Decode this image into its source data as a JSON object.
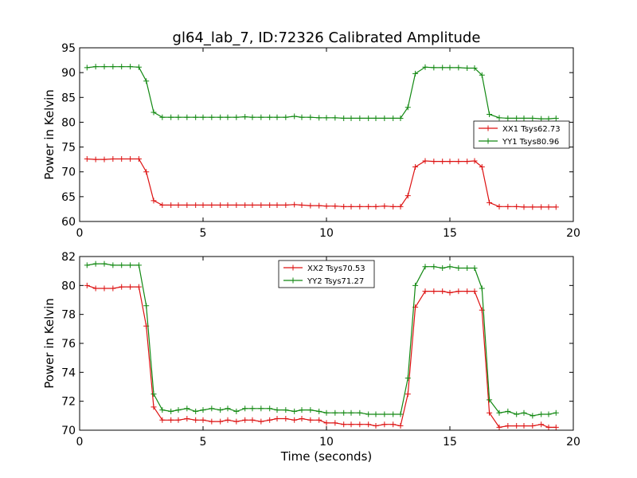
{
  "title": "gl64_lab_7, ID:72326 Calibrated Amplitude",
  "xlabel": "Time (seconds)",
  "chart_data": [
    {
      "type": "line",
      "ylabel": "Power in Kelvin",
      "xlim": [
        0,
        20
      ],
      "ylim": [
        60,
        95
      ],
      "xticks": [
        0,
        5,
        10,
        15,
        20
      ],
      "yticks": [
        60,
        65,
        70,
        75,
        80,
        85,
        90,
        95
      ],
      "legend_position": "center-right",
      "x": [
        0.3,
        0.65,
        1.0,
        1.35,
        1.7,
        2.05,
        2.4,
        2.7,
        3.0,
        3.35,
        3.7,
        4.0,
        4.35,
        4.7,
        5.0,
        5.35,
        5.7,
        6.0,
        6.35,
        6.7,
        7.0,
        7.35,
        7.7,
        8.0,
        8.35,
        8.7,
        9.0,
        9.35,
        9.7,
        10.0,
        10.35,
        10.7,
        11.0,
        11.35,
        11.7,
        12.0,
        12.35,
        12.7,
        13.0,
        13.3,
        13.6,
        14.0,
        14.35,
        14.7,
        15.0,
        15.35,
        15.7,
        16.0,
        16.3,
        16.6,
        17.0,
        17.35,
        17.7,
        18.0,
        18.35,
        18.7,
        19.0,
        19.3
      ],
      "series": [
        {
          "name": "XX1 Tsys62.73",
          "color": "#dd1111",
          "values": [
            72.6,
            72.5,
            72.5,
            72.6,
            72.6,
            72.6,
            72.6,
            70.0,
            64.2,
            63.3,
            63.3,
            63.3,
            63.3,
            63.3,
            63.3,
            63.3,
            63.3,
            63.3,
            63.3,
            63.3,
            63.3,
            63.3,
            63.3,
            63.3,
            63.3,
            63.4,
            63.3,
            63.2,
            63.2,
            63.1,
            63.1,
            63.0,
            63.0,
            63.0,
            63.0,
            63.0,
            63.1,
            63.0,
            63.0,
            65.2,
            71.0,
            72.2,
            72.1,
            72.1,
            72.1,
            72.1,
            72.1,
            72.2,
            71.0,
            63.8,
            63.0,
            63.0,
            63.0,
            62.9,
            62.9,
            62.9,
            62.9,
            62.9
          ]
        },
        {
          "name": "YY1 Tsys80.96",
          "color": "#118811",
          "values": [
            91.0,
            91.2,
            91.2,
            91.2,
            91.2,
            91.2,
            91.1,
            88.3,
            82.0,
            81.0,
            81.0,
            81.0,
            81.0,
            81.0,
            81.0,
            81.0,
            81.0,
            81.0,
            81.0,
            81.1,
            81.0,
            81.0,
            81.0,
            81.0,
            81.0,
            81.2,
            81.0,
            81.0,
            80.9,
            80.9,
            80.9,
            80.8,
            80.8,
            80.8,
            80.8,
            80.8,
            80.8,
            80.8,
            80.8,
            83.0,
            89.8,
            91.1,
            91.0,
            91.0,
            91.0,
            91.0,
            90.9,
            90.9,
            89.5,
            81.6,
            80.9,
            80.8,
            80.8,
            80.8,
            80.8,
            80.7,
            80.7,
            80.8
          ]
        }
      ]
    },
    {
      "type": "line",
      "ylabel": "Power in Kelvin",
      "xlabel": "Time (seconds)",
      "xlim": [
        0,
        20
      ],
      "ylim": [
        70,
        82
      ],
      "xticks": [
        0,
        5,
        10,
        15,
        20
      ],
      "yticks": [
        70,
        72,
        74,
        76,
        78,
        80,
        82
      ],
      "legend_position": "upper-center",
      "x": [
        0.3,
        0.65,
        1.0,
        1.35,
        1.7,
        2.05,
        2.4,
        2.7,
        3.0,
        3.35,
        3.7,
        4.0,
        4.35,
        4.7,
        5.0,
        5.35,
        5.7,
        6.0,
        6.35,
        6.7,
        7.0,
        7.35,
        7.7,
        8.0,
        8.35,
        8.7,
        9.0,
        9.35,
        9.7,
        10.0,
        10.35,
        10.7,
        11.0,
        11.35,
        11.7,
        12.0,
        12.35,
        12.7,
        13.0,
        13.3,
        13.6,
        14.0,
        14.35,
        14.7,
        15.0,
        15.35,
        15.7,
        16.0,
        16.3,
        16.6,
        17.0,
        17.35,
        17.7,
        18.0,
        18.35,
        18.7,
        19.0,
        19.3
      ],
      "series": [
        {
          "name": "XX2 Tsys70.53",
          "color": "#dd1111",
          "values": [
            80.0,
            79.8,
            79.8,
            79.8,
            79.9,
            79.9,
            79.9,
            77.2,
            71.6,
            70.7,
            70.7,
            70.7,
            70.8,
            70.7,
            70.7,
            70.6,
            70.6,
            70.7,
            70.6,
            70.7,
            70.7,
            70.6,
            70.7,
            70.8,
            70.8,
            70.7,
            70.8,
            70.7,
            70.7,
            70.5,
            70.5,
            70.4,
            70.4,
            70.4,
            70.4,
            70.3,
            70.4,
            70.4,
            70.3,
            72.5,
            78.5,
            79.6,
            79.6,
            79.6,
            79.5,
            79.6,
            79.6,
            79.6,
            78.3,
            71.2,
            70.2,
            70.3,
            70.3,
            70.3,
            70.3,
            70.4,
            70.2,
            70.2
          ]
        },
        {
          "name": "YY2 Tsys71.27",
          "color": "#118811",
          "values": [
            81.4,
            81.5,
            81.5,
            81.4,
            81.4,
            81.4,
            81.4,
            78.6,
            72.5,
            71.4,
            71.3,
            71.4,
            71.5,
            71.3,
            71.4,
            71.5,
            71.4,
            71.5,
            71.3,
            71.5,
            71.5,
            71.5,
            71.5,
            71.4,
            71.4,
            71.3,
            71.4,
            71.4,
            71.3,
            71.2,
            71.2,
            71.2,
            71.2,
            71.2,
            71.1,
            71.1,
            71.1,
            71.1,
            71.1,
            73.6,
            80.0,
            81.3,
            81.3,
            81.2,
            81.3,
            81.2,
            81.2,
            81.2,
            79.8,
            72.1,
            71.2,
            71.3,
            71.1,
            71.2,
            71.0,
            71.1,
            71.1,
            71.2
          ]
        }
      ]
    }
  ]
}
